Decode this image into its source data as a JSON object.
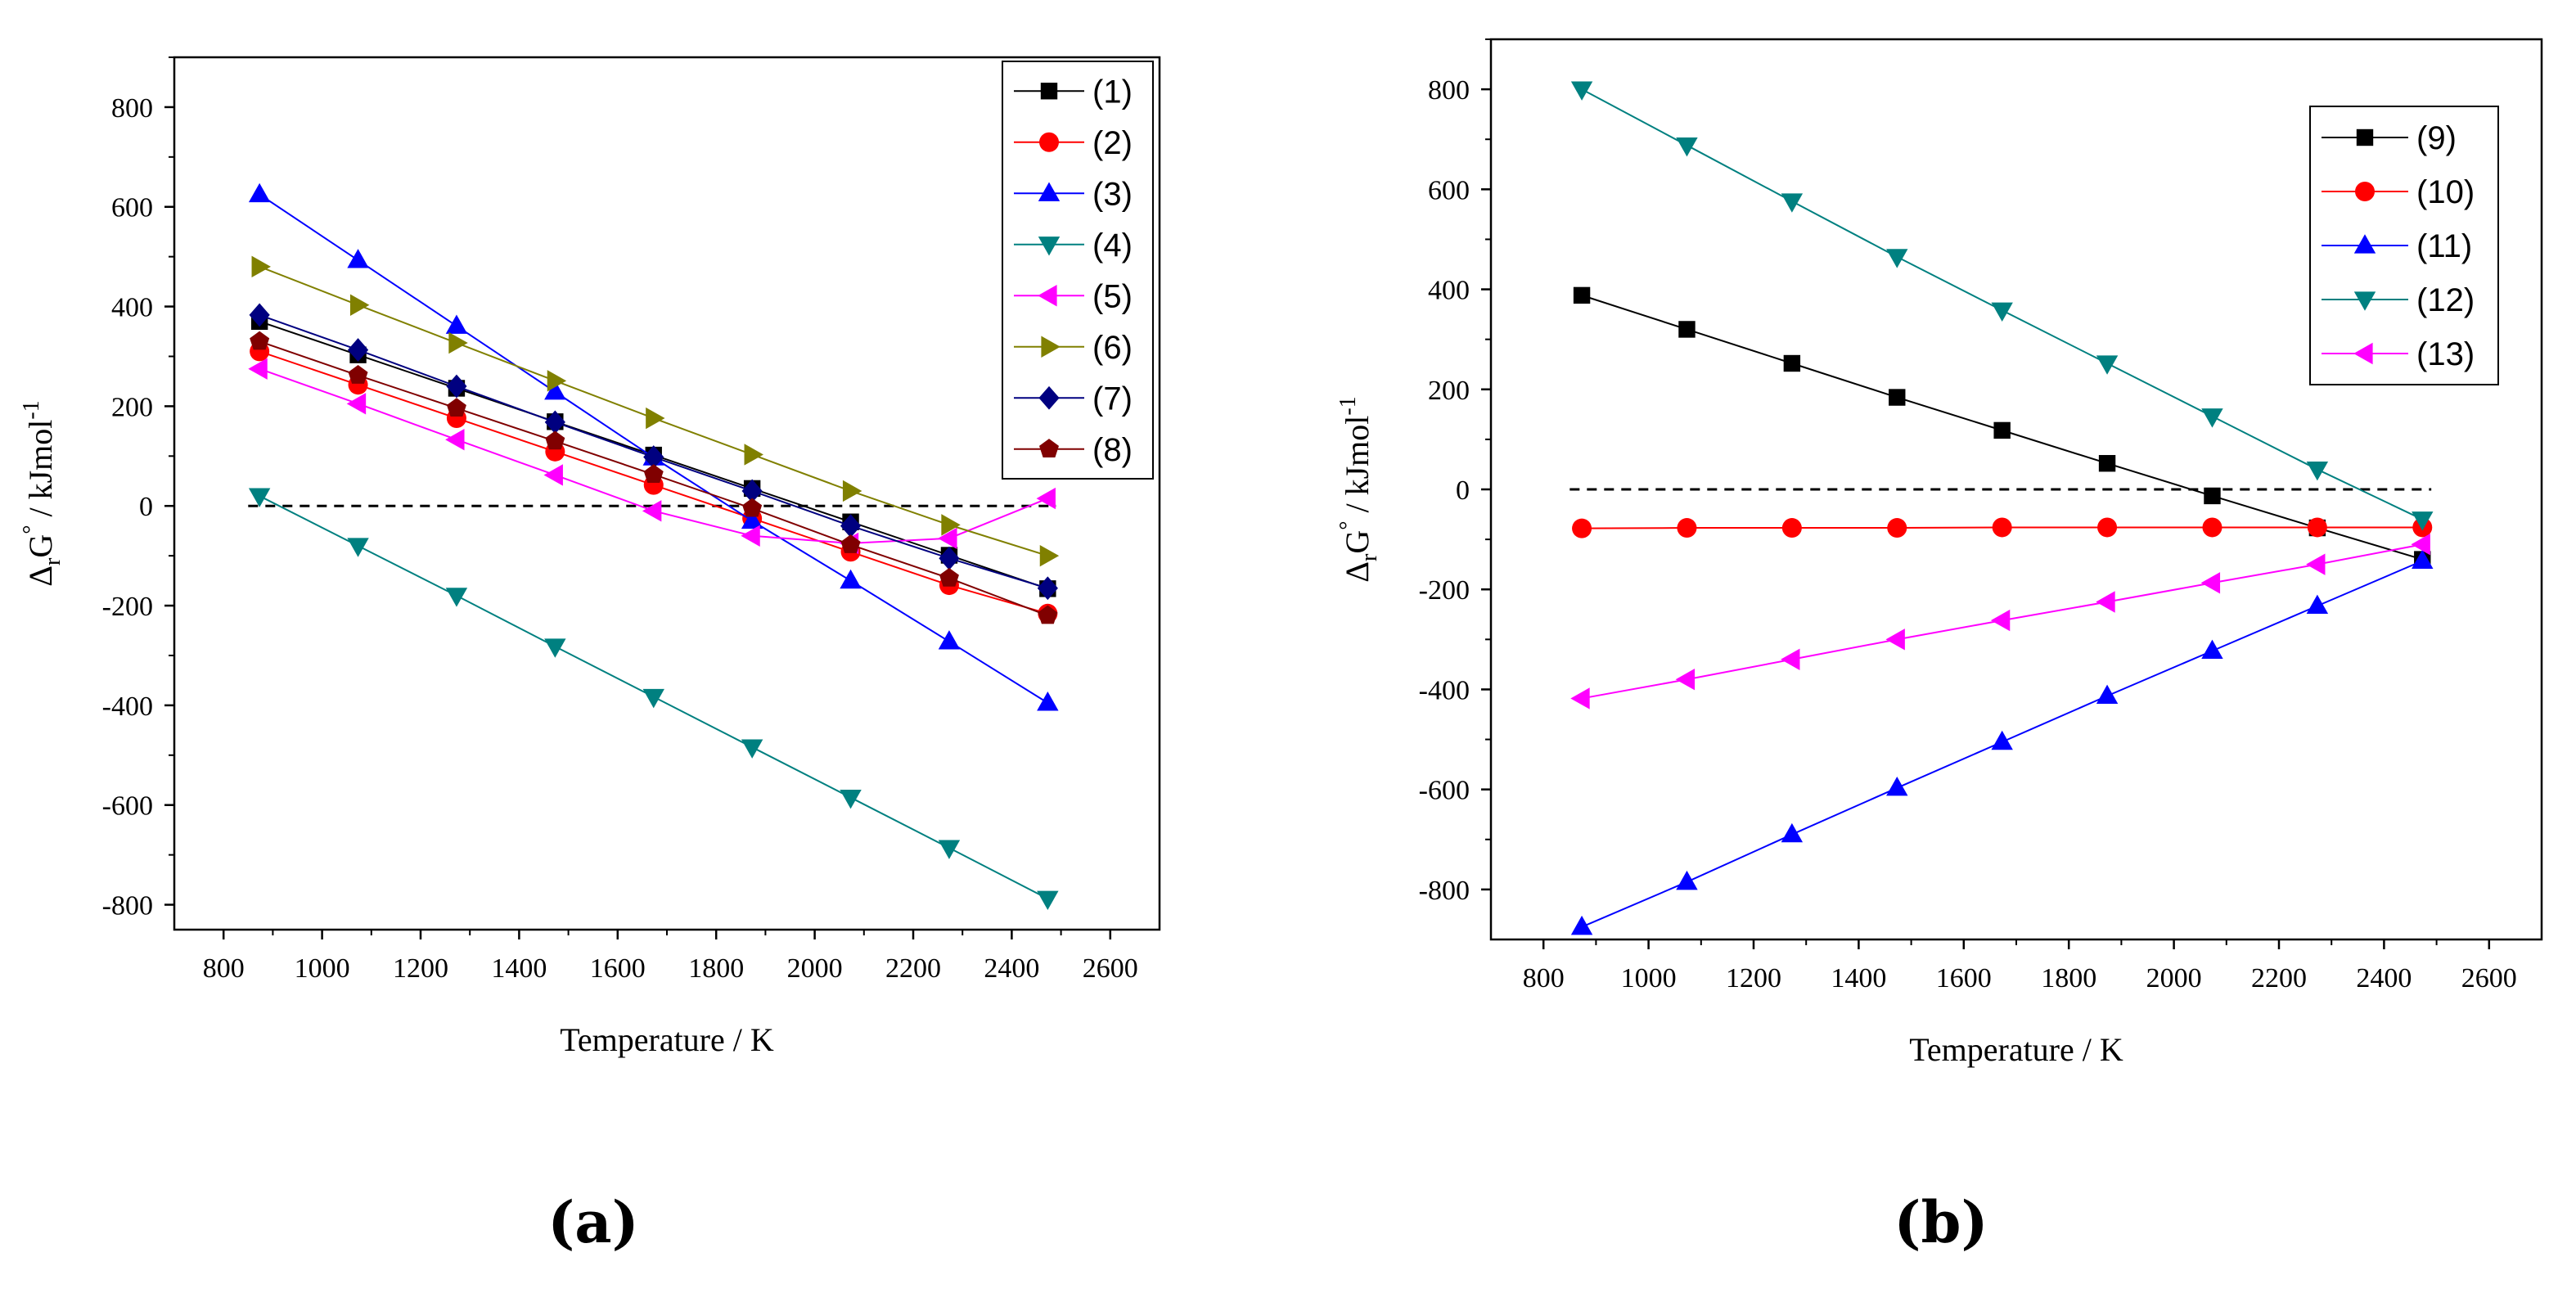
{
  "chart_data": [
    {
      "type": "line",
      "panel_label": "(a)",
      "xlabel": "Temperature / K",
      "ylabel_prefix": "Δ",
      "ylabel_sub": "r",
      "ylabel_mid": "G",
      "ylabel_sup1": "°",
      "ylabel_unit": " / kJmol",
      "ylabel_sup2": "-1",
      "xlim": [
        700,
        2700
      ],
      "ylim": [
        -850,
        900
      ],
      "xticks": [
        800,
        1000,
        1200,
        1400,
        1600,
        1800,
        2000,
        2200,
        2400,
        2600
      ],
      "yticks": [
        -800,
        -600,
        -400,
        -200,
        0,
        200,
        400,
        600,
        800
      ],
      "reference_line": {
        "y": 0,
        "x": [
          850,
          2490
        ],
        "style": "dashed"
      },
      "legend": "top-right",
      "x": [
        873,
        1073,
        1273,
        1473,
        1673,
        1873,
        2073,
        2273,
        2473
      ],
      "series": [
        {
          "name": "(1)",
          "marker": "square",
          "color": "#000000",
          "values": [
            370,
            303,
            236,
            169,
            102,
            35,
            -32,
            -99,
            -166
          ]
        },
        {
          "name": "(2)",
          "marker": "circle",
          "color": "#ff0000",
          "values": [
            310,
            243,
            176,
            109,
            42,
            -25,
            -92,
            -159,
            -216
          ]
        },
        {
          "name": "(3)",
          "marker": "triangle-up",
          "color": "#0000ff",
          "values": [
            625,
            493,
            361,
            229,
            97,
            -30,
            -150,
            -272,
            -395
          ]
        },
        {
          "name": "(4)",
          "marker": "triangle-down",
          "color": "#008080",
          "values": [
            20,
            -80,
            -180,
            -282,
            -383,
            -484,
            -585,
            -686,
            -788
          ]
        },
        {
          "name": "(5)",
          "marker": "triangle-left",
          "color": "#ff00ff",
          "values": [
            275,
            205,
            133,
            62,
            -10,
            -60,
            -75,
            -65,
            15
          ]
        },
        {
          "name": "(6)",
          "marker": "triangle-right",
          "color": "#808000",
          "values": [
            480,
            403,
            327,
            251,
            176,
            103,
            30,
            -38,
            -100
          ]
        },
        {
          "name": "(7)",
          "marker": "diamond",
          "color": "#000080",
          "values": [
            383,
            313,
            240,
            168,
            98,
            30,
            -40,
            -105,
            -165
          ]
        },
        {
          "name": "(8)",
          "marker": "pentagon",
          "color": "#800000",
          "values": [
            330,
            262,
            196,
            130,
            63,
            -5,
            -78,
            -145,
            -220
          ]
        }
      ]
    },
    {
      "type": "line",
      "panel_label": "(b)",
      "xlabel": "Temperature / K",
      "ylabel_prefix": "Δ",
      "ylabel_sub": "r",
      "ylabel_mid": "G",
      "ylabel_sup1": "°",
      "ylabel_unit": " / kJmol",
      "ylabel_sup2": "-1",
      "xlim": [
        700,
        2700
      ],
      "ylim": [
        -900,
        900
      ],
      "xticks": [
        800,
        1000,
        1200,
        1400,
        1600,
        1800,
        2000,
        2200,
        2400,
        2600
      ],
      "yticks": [
        -800,
        -600,
        -400,
        -200,
        0,
        200,
        400,
        600,
        800
      ],
      "reference_line": {
        "y": 0,
        "x": [
          850,
          2490
        ],
        "style": "dashed"
      },
      "legend": "top-right",
      "x": [
        873,
        1073,
        1273,
        1473,
        1673,
        1873,
        2073,
        2273,
        2473
      ],
      "series": [
        {
          "name": "(9)",
          "marker": "square",
          "color": "#000000",
          "values": [
            388,
            320,
            252,
            184,
            118,
            52,
            -13,
            -77,
            -140
          ]
        },
        {
          "name": "(10)",
          "marker": "circle",
          "color": "#ff0000",
          "values": [
            -78,
            -77,
            -77,
            -77,
            -76,
            -76,
            -76,
            -76,
            -76
          ]
        },
        {
          "name": "(11)",
          "marker": "triangle-up",
          "color": "#0000ff",
          "values": [
            -875,
            -785,
            -690,
            -597,
            -505,
            -413,
            -323,
            -233,
            -143
          ]
        },
        {
          "name": "(12)",
          "marker": "triangle-down",
          "color": "#008080",
          "values": [
            800,
            688,
            576,
            465,
            358,
            252,
            146,
            40,
            -60
          ]
        },
        {
          "name": "(13)",
          "marker": "triangle-left",
          "color": "#ff00ff",
          "values": [
            -418,
            -380,
            -340,
            -300,
            -262,
            -225,
            -187,
            -150,
            -110
          ]
        }
      ]
    }
  ]
}
